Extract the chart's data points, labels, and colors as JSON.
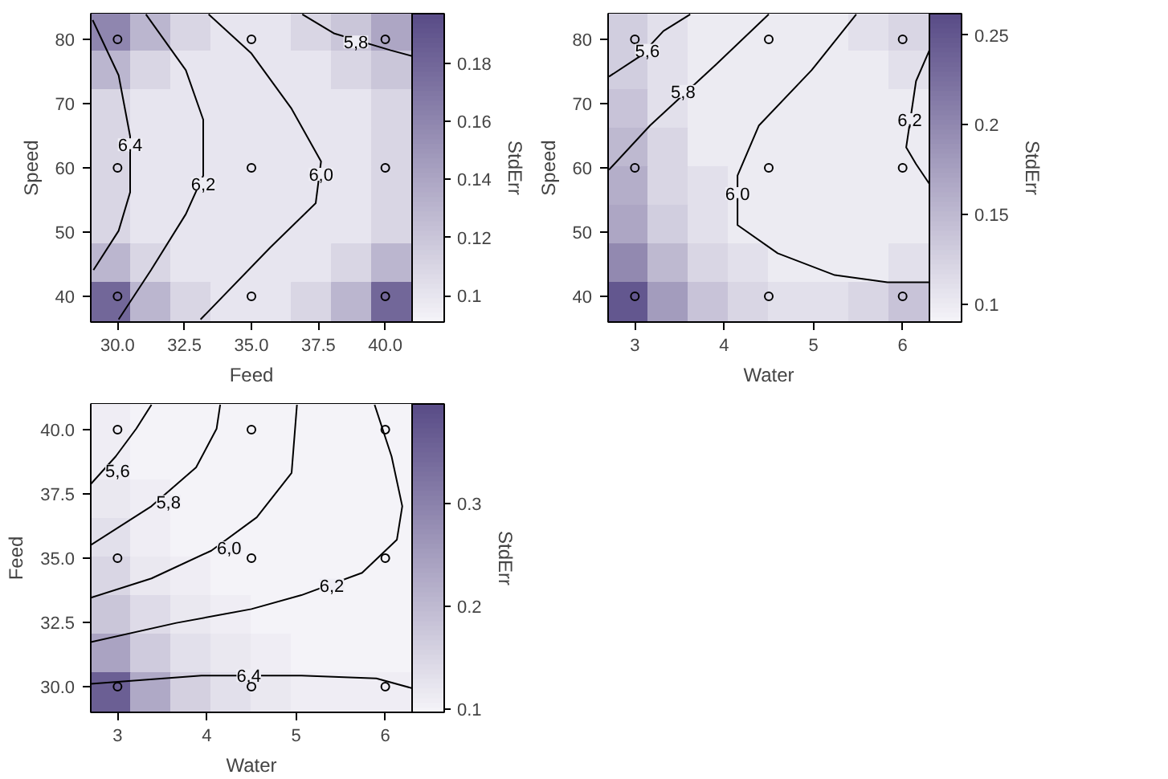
{
  "chart_data": [
    {
      "type": "scatter",
      "xlabel": "Feed",
      "ylabel": "Speed",
      "clabel": "StdErr",
      "xlim": [
        29,
        41
      ],
      "ylim": [
        36,
        84
      ],
      "xticks": [
        {
          "value": 30,
          "label": "30.0"
        },
        {
          "value": 32.5,
          "label": "32.5"
        },
        {
          "value": 35,
          "label": "35.0"
        },
        {
          "value": 37.5,
          "label": "37.5"
        },
        {
          "value": 40,
          "label": "40.0"
        }
      ],
      "yticks": [
        40,
        50,
        60,
        70,
        80
      ],
      "clim": [
        0.091,
        0.197
      ],
      "cticks": [
        0.1,
        0.12,
        0.14,
        0.16,
        0.18
      ],
      "series": [
        {
          "marker": "square",
          "x": [
            29.75,
            31.25,
            32.75,
            34.25,
            35.75,
            37.25,
            38.75,
            40.25,
            29.75,
            31.25,
            32.75,
            34.25,
            35.75,
            37.25,
            38.75,
            40.25,
            29.75,
            31.25,
            32.75,
            34.25,
            35.75,
            37.25,
            38.75,
            40.25,
            29.75,
            31.25,
            32.75,
            34.25,
            35.75,
            37.25,
            38.75,
            40.25,
            29.75,
            31.25,
            32.75,
            34.25,
            35.75,
            37.25,
            38.75,
            40.25,
            29.75,
            31.25,
            32.75,
            34.25,
            35.75,
            37.25,
            38.75,
            40.25,
            29.75,
            31.25,
            32.75,
            34.25,
            35.75,
            37.25,
            38.75,
            40.25,
            29.75,
            31.25,
            32.75,
            34.25,
            35.75,
            37.25,
            38.75,
            40.25
          ],
          "values": [
            81,
            81,
            81,
            81,
            81,
            81,
            81,
            81,
            75,
            75,
            75,
            75,
            75,
            75,
            75,
            75,
            69,
            69,
            69,
            69,
            69,
            69,
            69,
            69,
            63,
            63,
            63,
            63,
            63,
            63,
            63,
            63,
            57,
            57,
            57,
            57,
            57,
            57,
            57,
            57,
            51,
            51,
            51,
            51,
            51,
            51,
            51,
            51,
            45,
            45,
            45,
            45,
            45,
            45,
            45,
            45,
            39,
            39,
            39,
            39,
            39,
            39,
            39,
            39
          ],
          "colors": [
            "#8f86af",
            "#bbb6cf",
            "#d9d6e4",
            "#e7e5ef",
            "#e7e5ef",
            "#d9d6e4",
            "#cac6d9",
            "#ada6c4",
            "#bbb6cf",
            "#d9d6e4",
            "#e7e5ef",
            "#e7e5ef",
            "#e7e5ef",
            "#e7e5ef",
            "#d9d6e4",
            "#cac6d9",
            "#d9d6e4",
            "#e7e5ef",
            "#e7e5ef",
            "#e7e5ef",
            "#e7e5ef",
            "#e7e5ef",
            "#e7e5ef",
            "#d9d6e4",
            "#d9d6e4",
            "#e7e5ef",
            "#e7e5ef",
            "#e7e5ef",
            "#e7e5ef",
            "#e7e5ef",
            "#e7e5ef",
            "#d9d6e4",
            "#d9d6e4",
            "#e7e5ef",
            "#e7e5ef",
            "#e7e5ef",
            "#e7e5ef",
            "#e7e5ef",
            "#e7e5ef",
            "#d9d6e4",
            "#d9d6e4",
            "#e7e5ef",
            "#e7e5ef",
            "#e7e5ef",
            "#e7e5ef",
            "#e7e5ef",
            "#e7e5ef",
            "#d9d6e4",
            "#bbb6cf",
            "#d9d6e4",
            "#e7e5ef",
            "#e7e5ef",
            "#e7e5ef",
            "#e7e5ef",
            "#d9d6e4",
            "#bbb6cf",
            "#726799",
            "#bbb6cf",
            "#d9d6e4",
            "#e7e5ef",
            "#e7e5ef",
            "#d9d6e4",
            "#bbb6cf",
            "#726799"
          ],
          "cvalues": [
            0.16,
            0.13,
            0.11,
            0.1,
            0.1,
            0.11,
            0.12,
            0.14,
            0.13,
            0.11,
            0.1,
            0.1,
            0.1,
            0.1,
            0.11,
            0.12,
            0.11,
            0.1,
            0.1,
            0.1,
            0.1,
            0.1,
            0.1,
            0.11,
            0.11,
            0.1,
            0.1,
            0.1,
            0.1,
            0.1,
            0.1,
            0.11,
            0.11,
            0.1,
            0.1,
            0.1,
            0.1,
            0.1,
            0.1,
            0.11,
            0.11,
            0.1,
            0.1,
            0.1,
            0.1,
            0.1,
            0.1,
            0.11,
            0.13,
            0.11,
            0.1,
            0.1,
            0.1,
            0.1,
            0.11,
            0.13,
            0.18,
            0.13,
            0.11,
            0.1,
            0.1,
            0.11,
            0.13,
            0.18
          ]
        },
        {
          "type": "line",
          "color": "#000000",
          "x": [
            29.07,
            30.04,
            30.47,
            30.47,
            30.04,
            29.1
          ],
          "values": [
            83.0,
            74.4,
            64.9,
            56.2,
            50.2,
            44.1
          ]
        },
        {
          "type": "line",
          "color": "#000000",
          "x": [
            31.06,
            32.55,
            33.2,
            33.2,
            32.55,
            31.25,
            30.04
          ],
          "values": [
            83.9,
            75.2,
            67.5,
            58.8,
            52.8,
            44.1,
            36.4
          ]
        },
        {
          "type": "line",
          "color": "#000000",
          "x": [
            33.4,
            35.0,
            36.5,
            37.6,
            37.4,
            35.7,
            33.1
          ],
          "values": [
            83.9,
            77.8,
            69.2,
            61.0,
            54.5,
            47.6,
            36.4
          ]
        },
        {
          "type": "line",
          "color": "#000000",
          "x": [
            36.9,
            38.1,
            40.2,
            41
          ],
          "values": [
            83.9,
            80.9,
            78.3,
            77.4
          ]
        },
        {
          "marker": "circle",
          "color": "#000000",
          "x": [
            30,
            30,
            30,
            35,
            35,
            35,
            40,
            40,
            40
          ],
          "values": [
            40,
            60,
            80,
            40,
            60,
            80,
            40,
            60,
            80
          ]
        }
      ],
      "annotations": [
        {
          "text": "6,4",
          "x": 30.47,
          "y": 63.6
        },
        {
          "text": "6,2",
          "x": 33.2,
          "y": 57.5
        },
        {
          "text": "6,0",
          "x": 37.6,
          "y": 59.0
        },
        {
          "text": "5,8",
          "x": 38.9,
          "y": 79.6
        }
      ]
    },
    {
      "type": "scatter",
      "xlabel": "Water",
      "ylabel": "Speed",
      "clabel": "StdErr",
      "xlim": [
        2.7,
        6.3
      ],
      "ylim": [
        36,
        84
      ],
      "xticks": [
        3,
        4,
        5,
        6
      ],
      "yticks": [
        40,
        50,
        60,
        70,
        80
      ],
      "clim": [
        0.09,
        0.262
      ],
      "cticks": [
        0.1,
        0.15,
        0.2,
        0.25
      ],
      "series": [
        {
          "marker": "square",
          "x": [
            2.925,
            3.375,
            3.825,
            4.275,
            4.725,
            5.175,
            5.625,
            6.075,
            2.925,
            3.375,
            3.825,
            4.275,
            4.725,
            5.175,
            5.625,
            6.075,
            2.925,
            3.375,
            3.825,
            4.275,
            4.725,
            5.175,
            5.625,
            6.075,
            2.925,
            3.375,
            3.825,
            4.275,
            4.725,
            5.175,
            5.625,
            6.075,
            2.925,
            3.375,
            3.825,
            4.275,
            4.725,
            5.175,
            5.625,
            6.075,
            2.925,
            3.375,
            3.825,
            4.275,
            4.725,
            5.175,
            5.625,
            6.075,
            2.925,
            3.375,
            3.825,
            4.275,
            4.725,
            5.175,
            5.625,
            6.075,
            2.925,
            3.375,
            3.825,
            4.275,
            4.725,
            5.175,
            5.625,
            6.075
          ],
          "values": [
            81,
            81,
            81,
            81,
            81,
            81,
            81,
            81,
            75,
            75,
            75,
            75,
            75,
            75,
            75,
            75,
            69,
            69,
            69,
            69,
            69,
            69,
            69,
            69,
            63,
            63,
            63,
            63,
            63,
            63,
            63,
            63,
            57,
            57,
            57,
            57,
            57,
            57,
            57,
            57,
            51,
            51,
            51,
            51,
            51,
            51,
            51,
            51,
            45,
            45,
            45,
            45,
            45,
            45,
            45,
            45,
            39,
            39,
            39,
            39,
            39,
            39,
            39,
            39
          ],
          "colors": [
            "#d1cedf",
            "#e2e0eb",
            "#ecebf2",
            "#ecebf2",
            "#ecebf2",
            "#ecebf2",
            "#e2e0eb",
            "#d9d6e4",
            "#d1cedf",
            "#e2e0eb",
            "#ecebf2",
            "#ecebf2",
            "#ecebf2",
            "#ecebf2",
            "#ecebf2",
            "#e2e0eb",
            "#c8c3d8",
            "#e2e0eb",
            "#ecebf2",
            "#ecebf2",
            "#ecebf2",
            "#ecebf2",
            "#ecebf2",
            "#ecebf2",
            "#beb9d0",
            "#d9d6e4",
            "#ecebf2",
            "#ecebf2",
            "#ecebf2",
            "#ecebf2",
            "#ecebf2",
            "#ecebf2",
            "#b4aec9",
            "#d9d6e4",
            "#e2e0eb",
            "#ecebf2",
            "#ecebf2",
            "#ecebf2",
            "#ecebf2",
            "#ecebf2",
            "#ada6c4",
            "#d1cedf",
            "#e2e0eb",
            "#ecebf2",
            "#ecebf2",
            "#ecebf2",
            "#ecebf2",
            "#ecebf2",
            "#9289b0",
            "#beb9d0",
            "#d9d6e4",
            "#e2e0eb",
            "#ecebf2",
            "#ecebf2",
            "#ecebf2",
            "#e2e0eb",
            "#63578f",
            "#a39cbd",
            "#c8c3d8",
            "#d9d6e4",
            "#e2e0eb",
            "#e2e0eb",
            "#d9d6e4",
            "#c8c3d8"
          ],
          "cvalues": [
            0.13,
            0.11,
            0.1,
            0.1,
            0.1,
            0.1,
            0.11,
            0.12,
            0.13,
            0.11,
            0.1,
            0.1,
            0.1,
            0.1,
            0.1,
            0.11,
            0.14,
            0.11,
            0.1,
            0.1,
            0.1,
            0.1,
            0.1,
            0.1,
            0.15,
            0.12,
            0.1,
            0.1,
            0.1,
            0.1,
            0.1,
            0.1,
            0.16,
            0.12,
            0.11,
            0.1,
            0.1,
            0.1,
            0.1,
            0.1,
            0.17,
            0.13,
            0.11,
            0.1,
            0.1,
            0.1,
            0.1,
            0.1,
            0.2,
            0.15,
            0.12,
            0.11,
            0.1,
            0.1,
            0.1,
            0.11,
            0.25,
            0.18,
            0.14,
            0.12,
            0.11,
            0.11,
            0.12,
            0.14
          ]
        },
        {
          "type": "line",
          "color": "#000000",
          "x": [
            2.71,
            3.06,
            3.32,
            3.62
          ],
          "values": [
            74.2,
            77.4,
            81.3,
            83.9
          ]
        },
        {
          "type": "line",
          "color": "#000000",
          "x": [
            2.71,
            3.17,
            3.91,
            4.5
          ],
          "values": [
            59.7,
            66.6,
            76.1,
            83.9
          ]
        },
        {
          "type": "line",
          "color": "#000000",
          "x": [
            5.48,
            4.98,
            4.39,
            4.15,
            4.15,
            4.6,
            5.24,
            5.83,
            6.3
          ],
          "values": [
            83.9,
            75.2,
            66.6,
            58.8,
            51.1,
            46.7,
            43.3,
            42.2,
            42.2
          ]
        },
        {
          "type": "line",
          "color": "#000000",
          "x": [
            6.3,
            6.15,
            6.04,
            6.15,
            6.3
          ],
          "values": [
            78.3,
            73.5,
            63.2,
            60.6,
            57.5
          ]
        },
        {
          "marker": "circle",
          "color": "#000000",
          "x": [
            3,
            3,
            3,
            4.5,
            4.5,
            4.5,
            6,
            6,
            6
          ],
          "values": [
            40,
            60,
            80,
            40,
            60,
            80,
            40,
            60,
            80
          ]
        }
      ],
      "annotations": [
        {
          "text": "5,6",
          "x": 3.14,
          "y": 78.3
        },
        {
          "text": "5,8",
          "x": 3.54,
          "y": 71.9
        },
        {
          "text": "6,0",
          "x": 4.15,
          "y": 56.0
        },
        {
          "text": "6,2",
          "x": 6.08,
          "y": 67.5
        }
      ]
    },
    {
      "type": "scatter",
      "xlabel": "Water",
      "ylabel": "Feed",
      "clabel": "StdErr",
      "xlim": [
        2.7,
        6.3
      ],
      "ylim": [
        29,
        41
      ],
      "xticks": [
        3,
        4,
        5,
        6
      ],
      "yticks": [
        {
          "value": 30,
          "label": "30.0"
        },
        {
          "value": 32.5,
          "label": "32.5"
        },
        {
          "value": 35,
          "label": "35.0"
        },
        {
          "value": 37.5,
          "label": "37.5"
        },
        {
          "value": 40,
          "label": "40.0"
        }
      ],
      "clim": [
        0.097,
        0.397
      ],
      "cticks": [
        0.1,
        0.2,
        0.3
      ],
      "series": [
        {
          "marker": "square",
          "x": [
            2.925,
            3.375,
            3.825,
            4.275,
            4.725,
            5.175,
            5.625,
            6.075,
            2.925,
            3.375,
            3.825,
            4.275,
            4.725,
            5.175,
            5.625,
            6.075,
            2.925,
            3.375,
            3.825,
            4.275,
            4.725,
            5.175,
            5.625,
            6.075,
            2.925,
            3.375,
            3.825,
            4.275,
            4.725,
            5.175,
            5.625,
            6.075,
            2.925,
            3.375,
            3.825,
            4.275,
            4.725,
            5.175,
            5.625,
            6.075,
            2.925,
            3.375,
            3.825,
            4.275,
            4.725,
            5.175,
            5.625,
            6.075,
            2.925,
            3.375,
            3.825,
            4.275,
            4.725,
            5.175,
            5.625,
            6.075,
            2.925,
            3.375,
            3.825,
            4.275,
            4.725,
            5.175,
            5.625,
            6.075
          ],
          "values": [
            40.25,
            40.25,
            40.25,
            40.25,
            40.25,
            40.25,
            40.25,
            40.25,
            38.75,
            38.75,
            38.75,
            38.75,
            38.75,
            38.75,
            38.75,
            38.75,
            37.25,
            37.25,
            37.25,
            37.25,
            37.25,
            37.25,
            37.25,
            37.25,
            35.75,
            35.75,
            35.75,
            35.75,
            35.75,
            35.75,
            35.75,
            35.75,
            34.25,
            34.25,
            34.25,
            34.25,
            34.25,
            34.25,
            34.25,
            34.25,
            32.75,
            32.75,
            32.75,
            32.75,
            32.75,
            32.75,
            32.75,
            32.75,
            31.25,
            31.25,
            31.25,
            31.25,
            31.25,
            31.25,
            31.25,
            31.25,
            29.75,
            29.75,
            29.75,
            29.75,
            29.75,
            29.75,
            29.75,
            29.75
          ],
          "colors": [
            "#efedf4",
            "#f4f3f8",
            "#f4f3f8",
            "#f4f3f8",
            "#f4f3f8",
            "#f4f3f8",
            "#f4f3f8",
            "#f4f3f8",
            "#efedf4",
            "#f4f3f8",
            "#f4f3f8",
            "#f4f3f8",
            "#f4f3f8",
            "#f4f3f8",
            "#f4f3f8",
            "#f4f3f8",
            "#eae8f0",
            "#efedf4",
            "#f4f3f8",
            "#f4f3f8",
            "#f4f3f8",
            "#f4f3f8",
            "#f4f3f8",
            "#f4f3f8",
            "#e2e0eb",
            "#efedf4",
            "#f4f3f8",
            "#f4f3f8",
            "#f4f3f8",
            "#f4f3f8",
            "#f4f3f8",
            "#f4f3f8",
            "#d9d6e4",
            "#eae8f0",
            "#efedf4",
            "#f4f3f8",
            "#f4f3f8",
            "#f4f3f8",
            "#f4f3f8",
            "#f4f3f8",
            "#cac6d9",
            "#dedbe8",
            "#eae8f0",
            "#efedf4",
            "#f4f3f8",
            "#f4f3f8",
            "#f4f3f8",
            "#f4f3f8",
            "#aaa3c2",
            "#cfcbdd",
            "#e2e0eb",
            "#eae8f0",
            "#efedf4",
            "#f4f3f8",
            "#f4f3f8",
            "#f4f3f8",
            "#6b5f94",
            "#afa9c6",
            "#d4d0e0",
            "#e2e0eb",
            "#eae8f0",
            "#efedf4",
            "#efedf4",
            "#efedf4"
          ],
          "cvalues": [
            0.11,
            0.1,
            0.1,
            0.1,
            0.1,
            0.1,
            0.1,
            0.1,
            0.11,
            0.1,
            0.1,
            0.1,
            0.1,
            0.1,
            0.1,
            0.1,
            0.12,
            0.11,
            0.1,
            0.1,
            0.1,
            0.1,
            0.1,
            0.1,
            0.13,
            0.11,
            0.1,
            0.1,
            0.1,
            0.1,
            0.1,
            0.1,
            0.15,
            0.12,
            0.11,
            0.1,
            0.1,
            0.1,
            0.1,
            0.1,
            0.18,
            0.14,
            0.12,
            0.11,
            0.1,
            0.1,
            0.1,
            0.1,
            0.24,
            0.17,
            0.13,
            0.12,
            0.11,
            0.1,
            0.1,
            0.1,
            0.36,
            0.23,
            0.16,
            0.13,
            0.12,
            0.11,
            0.11,
            0.11
          ]
        },
        {
          "type": "line",
          "color": "#000000",
          "x": [
            2.7,
            2.98,
            3.21,
            3.38
          ],
          "values": [
            37.88,
            38.96,
            40.04,
            40.97
          ]
        },
        {
          "type": "line",
          "color": "#000000",
          "x": [
            2.7,
            3.38,
            3.88,
            4.11,
            4.15
          ],
          "values": [
            35.51,
            37.02,
            38.53,
            40.04,
            40.97
          ]
        },
        {
          "type": "line",
          "color": "#000000",
          "x": [
            2.7,
            3.38,
            4.05,
            4.56,
            4.95,
            5.01
          ],
          "values": [
            33.46,
            34.21,
            35.29,
            36.59,
            38.32,
            40.97
          ]
        },
        {
          "type": "line",
          "color": "#000000",
          "x": [
            2.7,
            3.66,
            4.5,
            5.06,
            5.74,
            6.13,
            6.19,
            6.07,
            5.88
          ],
          "values": [
            31.73,
            32.48,
            33.02,
            33.56,
            34.43,
            35.72,
            37.02,
            38.96,
            40.97
          ]
        },
        {
          "type": "line",
          "color": "#000000",
          "x": [
            2.7,
            3.94,
            5.06,
            5.9,
            6.3
          ],
          "values": [
            30.11,
            30.43,
            30.43,
            30.32,
            29.94
          ]
        },
        {
          "marker": "circle",
          "color": "#000000",
          "x": [
            3,
            3,
            3,
            4.5,
            4.5,
            4.5,
            6,
            6,
            6
          ],
          "values": [
            30,
            35,
            40,
            30,
            35,
            40,
            30,
            35,
            40
          ]
        }
      ],
      "annotations": [
        {
          "text": "5,6",
          "x": 3.0,
          "y": 38.4
        },
        {
          "text": "5,8",
          "x": 3.57,
          "y": 37.2
        },
        {
          "text": "6,0",
          "x": 4.25,
          "y": 35.4
        },
        {
          "text": "6,2",
          "x": 5.4,
          "y": 33.95
        },
        {
          "text": "6,4",
          "x": 4.47,
          "y": 30.43
        }
      ]
    }
  ]
}
